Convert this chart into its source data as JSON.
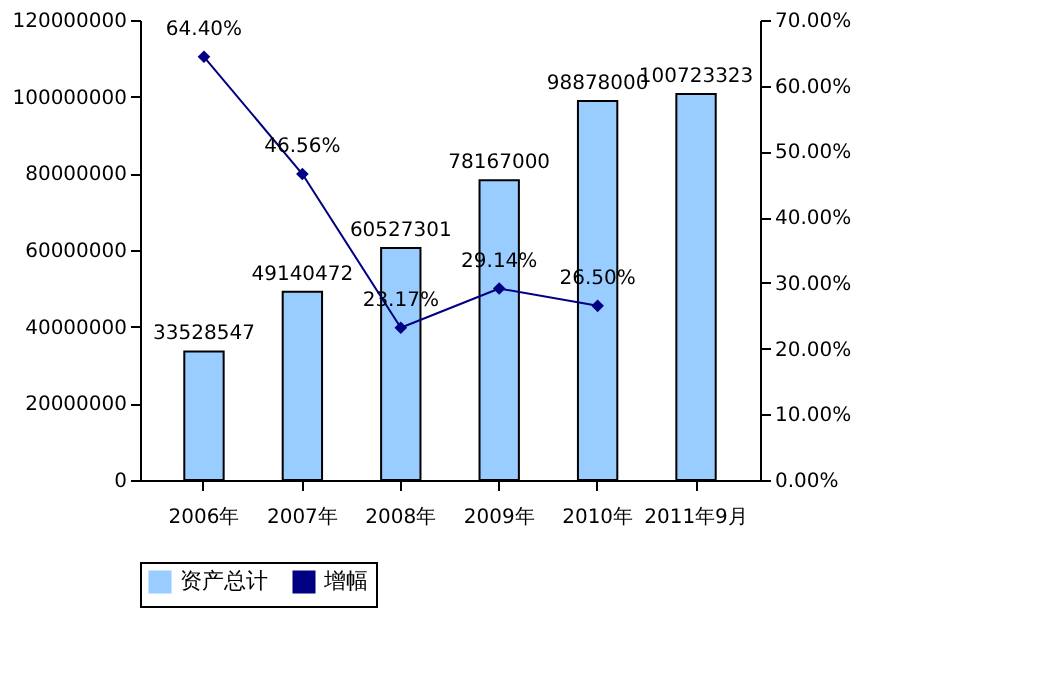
{
  "chart_data": {
    "type": "bar",
    "categories": [
      "2006年",
      "2007年",
      "2008年",
      "2009年",
      "2010年",
      "2011年9月"
    ],
    "series": [
      {
        "name": "资产总计",
        "color": "#99ccff",
        "values": [
          33528547,
          49140472,
          60527301,
          78167000,
          98878000,
          100723323
        ],
        "value_labels": [
          "33528547",
          "49140472",
          "60527301",
          "78167000",
          "98878000",
          "100723323"
        ]
      },
      {
        "name": "增幅",
        "type": "line",
        "axis": "y2",
        "color": "#000080",
        "marker": "diamond",
        "line_style": "solid",
        "values": [
          64.4,
          46.56,
          23.17,
          29.14,
          26.5,
          null
        ],
        "value_labels": [
          "64.40%",
          "46.56%",
          "23.17%",
          "29.14%",
          "26.50%",
          null
        ]
      }
    ],
    "ylim": [
      0,
      120000000
    ],
    "yticks": [
      0,
      20000000,
      40000000,
      60000000,
      80000000,
      100000000,
      120000000
    ],
    "y2lim": [
      0,
      70
    ],
    "y2ticks": [
      {
        "value": 0,
        "label": "0.00%"
      },
      {
        "value": 10,
        "label": "10.00%"
      },
      {
        "value": 20,
        "label": "20.00%"
      },
      {
        "value": 30,
        "label": "30.00%"
      },
      {
        "value": 40,
        "label": "40.00%"
      },
      {
        "value": 50,
        "label": "50.00%"
      },
      {
        "value": 60,
        "label": "60.00%"
      },
      {
        "value": 70,
        "label": "70.00%"
      }
    ],
    "legend": "bottom"
  }
}
